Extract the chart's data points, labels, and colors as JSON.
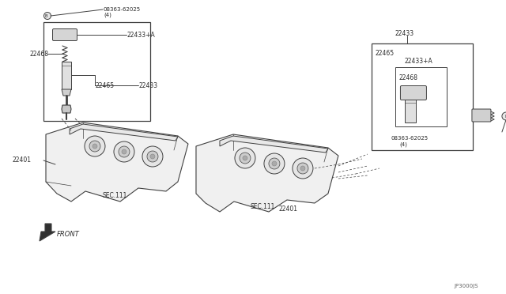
{
  "bg_color": "#ffffff",
  "line_color": "#404040",
  "text_color": "#2a2a2a",
  "fig_width": 6.4,
  "fig_height": 3.72,
  "parts": {
    "22401": "22401",
    "22433": "22433",
    "22433A": "22433+A",
    "22465": "22465",
    "22468": "22468",
    "bolt": "08363-62025",
    "bolt4": "(4)",
    "sec111": "SEC.111",
    "front": "FRONT",
    "jp": "JP3000JS"
  }
}
